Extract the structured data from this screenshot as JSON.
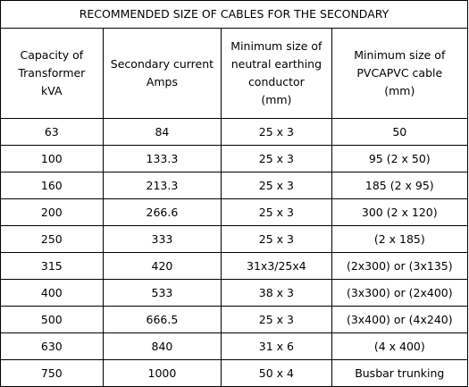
{
  "title": "RECOMMENDED SIZE OF CABLES FOR THE SECONDARY",
  "headers": [
    [
      "Capacity of",
      "Transformer",
      "kVA"
    ],
    [
      "Secondary current",
      "Amps"
    ],
    [
      "Minimum size of",
      "neutral earthing",
      "conductor",
      "(mm)"
    ],
    [
      "Minimum size of",
      "PVCAPVC cable",
      "(mm)"
    ]
  ],
  "rows": [
    [
      "63",
      "84",
      "25 x 3",
      "50"
    ],
    [
      "100",
      "133.3",
      "25 x 3",
      "95 (2 x 50)"
    ],
    [
      "160",
      "213.3",
      "25 x 3",
      "185 (2 x 95)"
    ],
    [
      "200",
      "266.6",
      "25 x 3",
      "300 (2 x 120)"
    ],
    [
      "250",
      "333",
      "25 x 3",
      "(2 x 185)"
    ],
    [
      "315",
      "420",
      "31x3/25x4",
      "(2x300) or (3x135)"
    ],
    [
      "400",
      "533",
      "38 x 3",
      "(3x300) or (2x400)"
    ],
    [
      "500",
      "666.5",
      "25 x 3",
      "(3x400) or (4x240)"
    ],
    [
      "630",
      "840",
      "31 x 6",
      "(4 x 400)"
    ],
    [
      "750",
      "1000",
      "50 x 4",
      "Busbar trunking"
    ]
  ]
}
